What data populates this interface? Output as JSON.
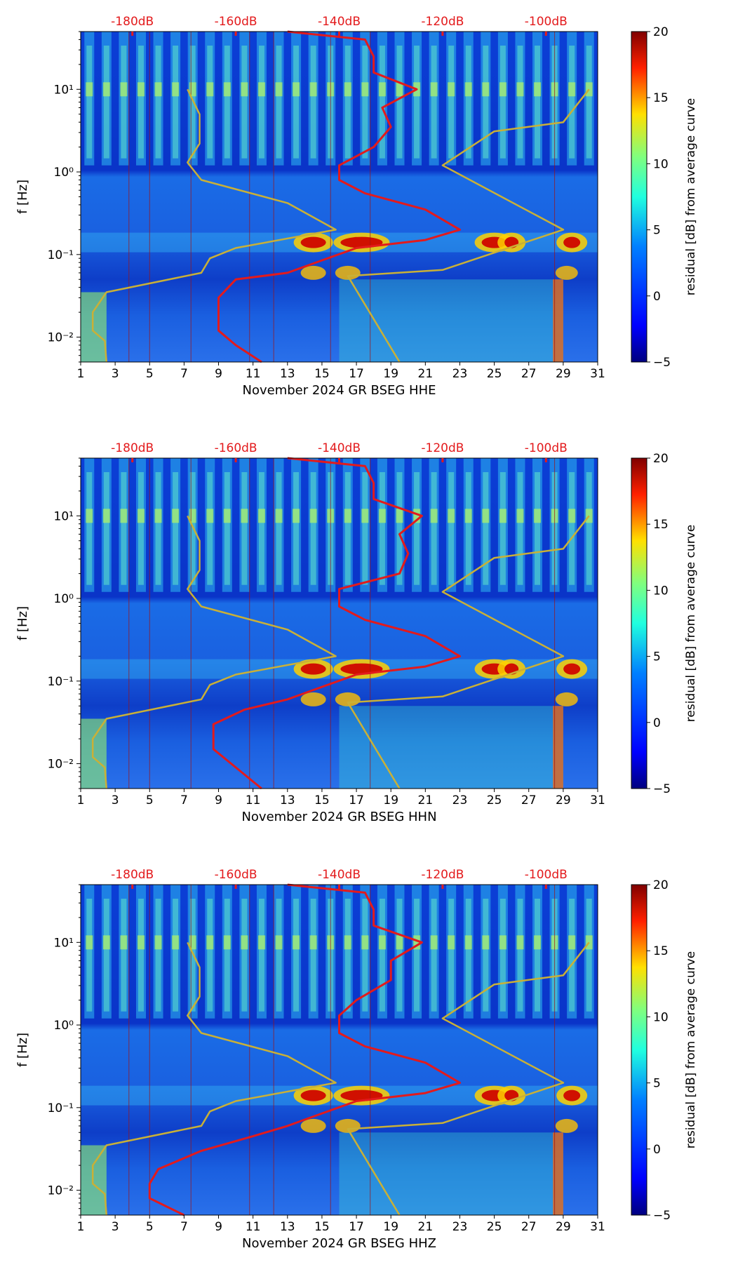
{
  "chart_data": [
    {
      "type": "heatmap",
      "panel": "HHE",
      "xlabel": "November 2024 GR BSEG  HHE",
      "ylabel": "f [Hz]",
      "colorbar_label": "residual [dB] from average curve",
      "x_ticks": [
        "1",
        "3",
        "5",
        "7",
        "9",
        "11",
        "13",
        "15",
        "17",
        "19",
        "21",
        "23",
        "25",
        "27",
        "29",
        "31"
      ],
      "xlim": [
        1,
        31
      ],
      "y_ticks": [
        {
          "value": 0.01,
          "label": "10⁻²"
        },
        {
          "value": 0.1,
          "label": "10⁻¹"
        },
        {
          "value": 1,
          "label": "10⁰"
        },
        {
          "value": 10,
          "label": "10¹"
        }
      ],
      "ylim_hz": [
        0.005,
        50
      ],
      "y_scale": "log",
      "top_axis_ticks": [
        "-180dB",
        "-160dB",
        "-140dB",
        "-120dB",
        "-100dB"
      ],
      "top_axis_day_positions": [
        4,
        10,
        16,
        22,
        28
      ],
      "colorbar_ticks": [
        20,
        15,
        10,
        5,
        0,
        -5
      ],
      "colorbar_range": [
        -5,
        20
      ],
      "series": [
        {
          "name": "average PSD curve",
          "color": "#e31a1c",
          "points": [
            [
              11.5,
              0.005
            ],
            [
              10,
              0.008
            ],
            [
              9,
              0.012
            ],
            [
              9,
              0.03
            ],
            [
              10,
              0.05
            ],
            [
              13,
              0.06
            ],
            [
              15,
              0.085
            ],
            [
              17,
              0.12
            ],
            [
              21,
              0.15
            ],
            [
              23,
              0.2
            ],
            [
              21,
              0.35
            ],
            [
              17.5,
              0.55
            ],
            [
              16,
              0.8
            ],
            [
              16,
              1.2
            ],
            [
              18,
              2
            ],
            [
              19,
              3.5
            ],
            [
              18.5,
              6
            ],
            [
              20.5,
              10
            ],
            [
              18,
              16
            ],
            [
              18,
              25
            ],
            [
              17.5,
              40
            ],
            [
              13,
              50
            ]
          ]
        },
        {
          "name": "NHNM / NLNM reference",
          "color": "#c9b037",
          "points": [
            [
              2.5,
              0.005
            ],
            [
              2.4,
              0.009
            ],
            [
              1.7,
              0.012
            ],
            [
              1.7,
              0.02
            ],
            [
              2.5,
              0.035
            ],
            [
              8,
              0.06
            ],
            [
              8.5,
              0.09
            ],
            [
              10,
              0.12
            ],
            [
              15.8,
              0.2
            ],
            [
              13,
              0.42
            ],
            [
              8,
              0.8
            ],
            [
              7.2,
              1.3
            ],
            [
              7.9,
              2.2
            ],
            [
              7.9,
              5
            ],
            [
              7.2,
              10
            ]
          ]
        },
        {
          "name": "NHNM reference",
          "color": "#c9b037",
          "points": [
            [
              19.5,
              0.005
            ],
            [
              16.5,
              0.055
            ],
            [
              22,
              0.065
            ],
            [
              29,
              0.2
            ],
            [
              22,
              1.2
            ],
            [
              25,
              3.1
            ],
            [
              29,
              4
            ],
            [
              30.5,
              10
            ]
          ]
        }
      ]
    },
    {
      "type": "heatmap",
      "panel": "HHN",
      "xlabel": "November 2024 GR BSEG  HHN",
      "ylabel": "f [Hz]",
      "colorbar_label": "residual [dB] from average curve",
      "x_ticks": [
        "1",
        "3",
        "5",
        "7",
        "9",
        "11",
        "13",
        "15",
        "17",
        "19",
        "21",
        "23",
        "25",
        "27",
        "29",
        "31"
      ],
      "xlim": [
        1,
        31
      ],
      "y_ticks": [
        {
          "value": 0.01,
          "label": "10⁻²"
        },
        {
          "value": 0.1,
          "label": "10⁻¹"
        },
        {
          "value": 1,
          "label": "10⁰"
        },
        {
          "value": 10,
          "label": "10¹"
        }
      ],
      "ylim_hz": [
        0.005,
        50
      ],
      "y_scale": "log",
      "top_axis_ticks": [
        "-180dB",
        "-160dB",
        "-140dB",
        "-120dB",
        "-100dB"
      ],
      "top_axis_day_positions": [
        4,
        10,
        16,
        22,
        28
      ],
      "colorbar_ticks": [
        20,
        15,
        10,
        5,
        0,
        -5
      ],
      "colorbar_range": [
        -5,
        20
      ],
      "series": [
        {
          "name": "average PSD curve",
          "color": "#e31a1c",
          "points": [
            [
              11.5,
              0.005
            ],
            [
              10,
              0.009
            ],
            [
              8.7,
              0.015
            ],
            [
              8.7,
              0.03
            ],
            [
              10.5,
              0.045
            ],
            [
              13,
              0.06
            ],
            [
              15,
              0.085
            ],
            [
              17,
              0.12
            ],
            [
              21,
              0.15
            ],
            [
              23,
              0.2
            ],
            [
              21,
              0.35
            ],
            [
              17.5,
              0.55
            ],
            [
              16,
              0.8
            ],
            [
              16,
              1.3
            ],
            [
              19.5,
              2
            ],
            [
              20,
              3.5
            ],
            [
              19.5,
              6
            ],
            [
              20.8,
              10
            ],
            [
              18,
              16
            ],
            [
              18,
              25
            ],
            [
              17.5,
              40
            ],
            [
              13,
              50
            ]
          ]
        },
        {
          "name": "NHNM / NLNM reference",
          "color": "#c9b037",
          "points": [
            [
              2.5,
              0.005
            ],
            [
              2.4,
              0.009
            ],
            [
              1.7,
              0.012
            ],
            [
              1.7,
              0.02
            ],
            [
              2.5,
              0.035
            ],
            [
              8,
              0.06
            ],
            [
              8.5,
              0.09
            ],
            [
              10,
              0.12
            ],
            [
              15.8,
              0.2
            ],
            [
              13,
              0.42
            ],
            [
              8,
              0.8
            ],
            [
              7.2,
              1.3
            ],
            [
              7.9,
              2.2
            ],
            [
              7.9,
              5
            ],
            [
              7.2,
              10
            ]
          ]
        },
        {
          "name": "NHNM reference",
          "color": "#c9b037",
          "points": [
            [
              19.5,
              0.005
            ],
            [
              16.5,
              0.055
            ],
            [
              22,
              0.065
            ],
            [
              29,
              0.2
            ],
            [
              22,
              1.2
            ],
            [
              25,
              3.1
            ],
            [
              29,
              4
            ],
            [
              30.5,
              10
            ]
          ]
        }
      ]
    },
    {
      "type": "heatmap",
      "panel": "HHZ",
      "xlabel": "November 2024 GR BSEG  HHZ",
      "ylabel": "f [Hz]",
      "colorbar_label": "residual [dB] from average curve",
      "x_ticks": [
        "1",
        "3",
        "5",
        "7",
        "9",
        "11",
        "13",
        "15",
        "17",
        "19",
        "21",
        "23",
        "25",
        "27",
        "29",
        "31"
      ],
      "xlim": [
        1,
        31
      ],
      "y_ticks": [
        {
          "value": 0.01,
          "label": "10⁻²"
        },
        {
          "value": 0.1,
          "label": "10⁻¹"
        },
        {
          "value": 1,
          "label": "10⁰"
        },
        {
          "value": 10,
          "label": "10¹"
        }
      ],
      "ylim_hz": [
        0.005,
        50
      ],
      "y_scale": "log",
      "top_axis_ticks": [
        "-180dB",
        "-160dB",
        "-140dB",
        "-120dB",
        "-100dB"
      ],
      "top_axis_day_positions": [
        4,
        10,
        16,
        22,
        28
      ],
      "colorbar_ticks": [
        20,
        15,
        10,
        5,
        0,
        -5
      ],
      "colorbar_range": [
        -5,
        20
      ],
      "series": [
        {
          "name": "average PSD curve",
          "color": "#e31a1c",
          "points": [
            [
              7,
              0.005
            ],
            [
              5,
              0.008
            ],
            [
              5,
              0.012
            ],
            [
              5.5,
              0.018
            ],
            [
              8,
              0.03
            ],
            [
              11,
              0.045
            ],
            [
              13,
              0.06
            ],
            [
              15,
              0.085
            ],
            [
              17,
              0.12
            ],
            [
              21,
              0.15
            ],
            [
              23,
              0.2
            ],
            [
              21,
              0.35
            ],
            [
              17.5,
              0.55
            ],
            [
              16,
              0.8
            ],
            [
              16,
              1.3
            ],
            [
              17,
              2
            ],
            [
              19,
              3.5
            ],
            [
              19,
              6
            ],
            [
              20.8,
              10
            ],
            [
              18,
              16
            ],
            [
              18,
              25
            ],
            [
              17.5,
              40
            ],
            [
              13,
              50
            ]
          ]
        },
        {
          "name": "NHNM / NLNM reference",
          "color": "#c9b037",
          "points": [
            [
              2.5,
              0.005
            ],
            [
              2.4,
              0.009
            ],
            [
              1.7,
              0.012
            ],
            [
              1.7,
              0.02
            ],
            [
              2.5,
              0.035
            ],
            [
              8,
              0.06
            ],
            [
              8.5,
              0.09
            ],
            [
              10,
              0.12
            ],
            [
              15.8,
              0.2
            ],
            [
              13,
              0.42
            ],
            [
              8,
              0.8
            ],
            [
              7.2,
              1.3
            ],
            [
              7.9,
              2.2
            ],
            [
              7.9,
              5
            ],
            [
              7.2,
              10
            ]
          ]
        },
        {
          "name": "NHNM reference",
          "color": "#c9b037",
          "points": [
            [
              19.5,
              0.005
            ],
            [
              16.5,
              0.055
            ],
            [
              22,
              0.065
            ],
            [
              29,
              0.2
            ],
            [
              22,
              1.2
            ],
            [
              25,
              3.1
            ],
            [
              29,
              4
            ],
            [
              30.5,
              10
            ]
          ]
        }
      ]
    }
  ]
}
